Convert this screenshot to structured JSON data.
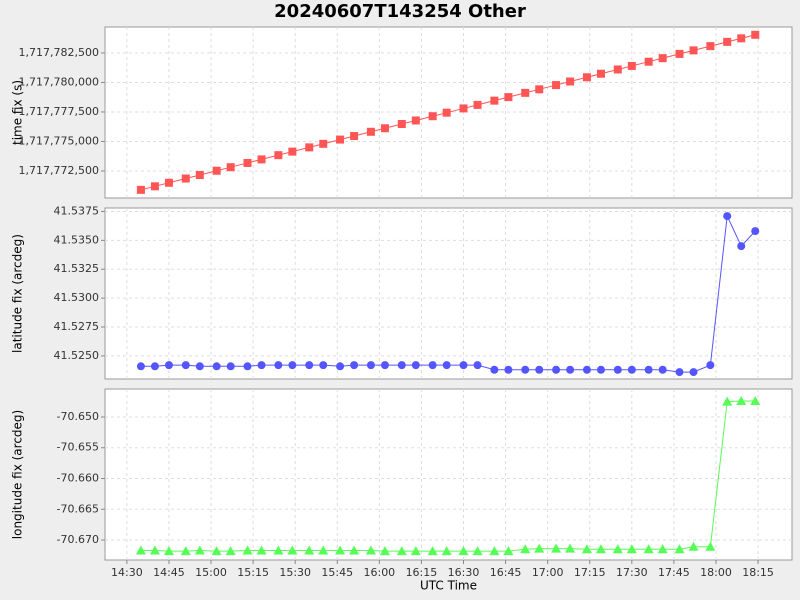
{
  "chart_data": [
    {
      "type": "line",
      "title": "20240607T143254 Other",
      "y_label": "time fix (s)",
      "color": "#ff5555",
      "marker": "square",
      "grid": true,
      "x": [
        875,
        880,
        885,
        891,
        896,
        902,
        907,
        913,
        918,
        924,
        929,
        935,
        940,
        946,
        951,
        957,
        962,
        968,
        973,
        979,
        984,
        990,
        995,
        1001,
        1006,
        1012,
        1017,
        1023,
        1028,
        1034,
        1039,
        1045,
        1050,
        1056,
        1061,
        1067,
        1072,
        1078,
        1084,
        1089,
        1094
      ],
      "values": [
        1717770900,
        1717771200,
        1717771500,
        1717771860,
        1717772160,
        1717772520,
        1717772820,
        1717773180,
        1717773480,
        1717773840,
        1717774140,
        1717774500,
        1717774800,
        1717775160,
        1717775460,
        1717775820,
        1717776120,
        1717776480,
        1717776780,
        1717777140,
        1717777440,
        1717777800,
        1717778100,
        1717778460,
        1717778760,
        1717779120,
        1717779420,
        1717779780,
        1717780080,
        1717780440,
        1717780740,
        1717781100,
        1717781400,
        1717781760,
        1717782060,
        1717782420,
        1717782720,
        1717783080,
        1717783440,
        1717783740,
        1717784040
      ],
      "xlim": [
        862.2,
        1107.1
      ],
      "ylim": [
        1717770210,
        1717784700
      ],
      "yticks": [
        {
          "value": 1717772500,
          "label": "1,717,772,500"
        },
        {
          "value": 1717775000,
          "label": "1,717,775,000"
        },
        {
          "value": 1717777500,
          "label": "1,717,777,500"
        },
        {
          "value": 1717780000,
          "label": "1,717,780,000"
        },
        {
          "value": 1717782500,
          "label": "1,717,782,500"
        }
      ]
    },
    {
      "type": "line",
      "y_label": "latitude fix (arcdeg)",
      "color": "#5555ff",
      "marker": "circle",
      "grid": true,
      "x": [
        875,
        880,
        885,
        891,
        896,
        902,
        907,
        913,
        918,
        924,
        929,
        935,
        940,
        946,
        951,
        957,
        962,
        968,
        973,
        979,
        984,
        990,
        995,
        1001,
        1006,
        1012,
        1017,
        1023,
        1028,
        1034,
        1039,
        1045,
        1050,
        1056,
        1061,
        1067,
        1072,
        1078,
        1084,
        1089,
        1094
      ],
      "values": [
        41.5241,
        41.5241,
        41.5242,
        41.5242,
        41.5241,
        41.5241,
        41.5241,
        41.5241,
        41.5242,
        41.5242,
        41.5242,
        41.5242,
        41.5242,
        41.5241,
        41.5242,
        41.5242,
        41.5242,
        41.5242,
        41.5242,
        41.5242,
        41.5242,
        41.5242,
        41.5242,
        41.5238,
        41.5238,
        41.5238,
        41.5238,
        41.5238,
        41.5238,
        41.5238,
        41.5238,
        41.5238,
        41.5238,
        41.5238,
        41.5238,
        41.5236,
        41.5236,
        41.5242,
        41.5371,
        41.5345,
        41.5358
      ],
      "xlim": [
        862.2,
        1107.1
      ],
      "ylim": [
        41.523,
        41.5378
      ],
      "yticks": [
        {
          "value": 41.525,
          "label": "41.5250"
        },
        41.5275,
        {
          "value": 41.53,
          "label": "41.5300"
        },
        41.5325,
        {
          "value": 41.535,
          "label": "41.5350"
        },
        41.5375
      ]
    },
    {
      "type": "line",
      "y_label": "longitude fix (arcdeg)",
      "x_label": "UTC Time",
      "color": "#55ff55",
      "marker": "triangle",
      "grid": true,
      "x": [
        875,
        880,
        885,
        891,
        896,
        902,
        907,
        913,
        918,
        924,
        929,
        935,
        940,
        946,
        951,
        957,
        962,
        968,
        973,
        979,
        984,
        990,
        995,
        1001,
        1006,
        1012,
        1017,
        1023,
        1028,
        1034,
        1039,
        1045,
        1050,
        1056,
        1061,
        1067,
        1072,
        1078,
        1084,
        1089,
        1094
      ],
      "values": [
        -70.6717,
        -70.6717,
        -70.6718,
        -70.6718,
        -70.6717,
        -70.6718,
        -70.6718,
        -70.6717,
        -70.6717,
        -70.6717,
        -70.6717,
        -70.6717,
        -70.6717,
        -70.6717,
        -70.6717,
        -70.6717,
        -70.6718,
        -70.6718,
        -70.6718,
        -70.6718,
        -70.6718,
        -70.6718,
        -70.6718,
        -70.6718,
        -70.6718,
        -70.6715,
        -70.6714,
        -70.6714,
        -70.6714,
        -70.6715,
        -70.6715,
        -70.6715,
        -70.6715,
        -70.6715,
        -70.6715,
        -70.6715,
        -70.6711,
        -70.6711,
        -70.6475,
        -70.6474,
        -70.6474
      ],
      "xlim": [
        862.2,
        1107.1
      ],
      "ylim": [
        -70.67325,
        -70.64545
      ],
      "yticks": [
        {
          "value": -70.67,
          "label": "-70.670"
        },
        -70.665,
        {
          "value": -70.66,
          "label": "-70.660"
        },
        -70.655,
        {
          "value": -70.65,
          "label": "-70.650"
        }
      ],
      "xticks": [
        {
          "value": 870,
          "label": "14:30"
        },
        {
          "value": 885,
          "label": "14:45"
        },
        {
          "value": 900,
          "label": "15:00"
        },
        {
          "value": 915,
          "label": "15:15"
        },
        {
          "value": 930,
          "label": "15:30"
        },
        {
          "value": 945,
          "label": "15:45"
        },
        {
          "value": 960,
          "label": "16:00"
        },
        {
          "value": 975,
          "label": "16:15"
        },
        {
          "value": 990,
          "label": "16:30"
        },
        {
          "value": 1005,
          "label": "16:45"
        },
        {
          "value": 1020,
          "label": "17:00"
        },
        {
          "value": 1035,
          "label": "17:15"
        },
        {
          "value": 1050,
          "label": "17:30"
        },
        {
          "value": 1065,
          "label": "17:45"
        },
        {
          "value": 1080,
          "label": "18:00"
        },
        {
          "value": 1095,
          "label": "18:15"
        }
      ]
    }
  ]
}
